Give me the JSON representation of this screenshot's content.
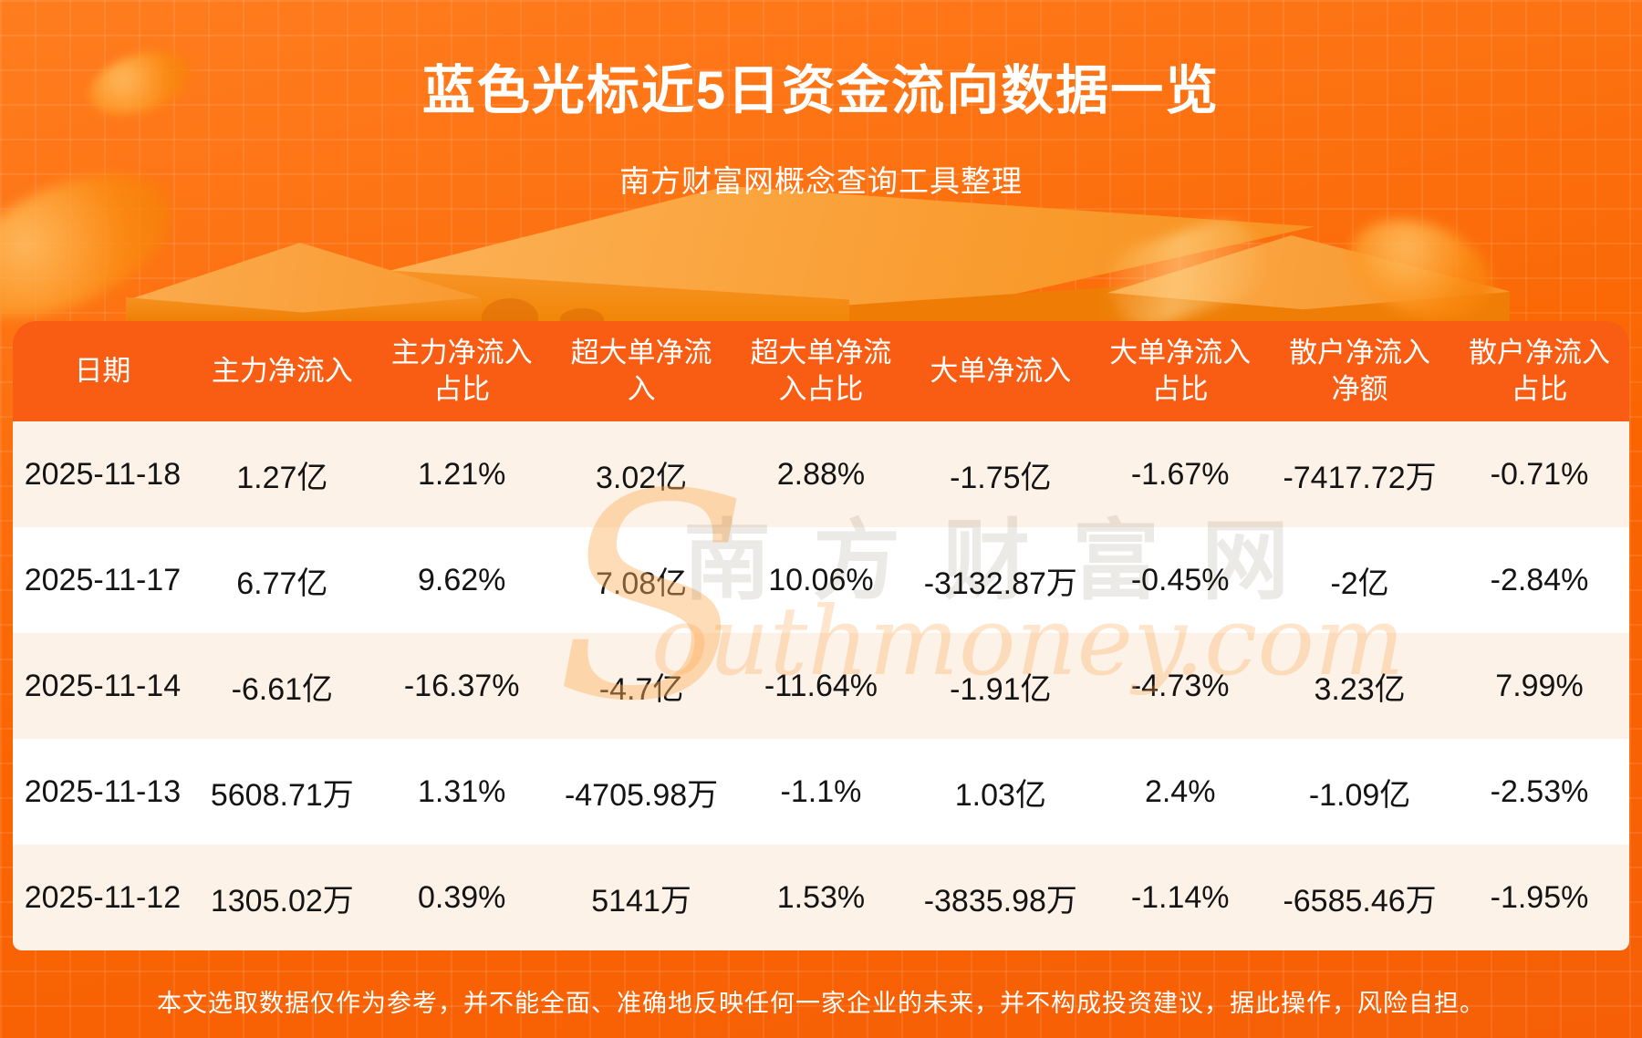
{
  "page": {
    "title": "蓝色光标近5日资金流向数据一览",
    "subtitle": "南方财富网概念查询工具整理",
    "disclaimer": "本文选取数据仅作为参考，并不能全面、准确地反映任何一家企业的未来，并不构成投资建议，据此操作，风险自担。"
  },
  "watermark": {
    "initial": "S",
    "cn": "南方财富网",
    "en": "outhmoney.com"
  },
  "colors": {
    "background_orange": "#FA6502",
    "header_orange": "#F95D13",
    "row_cream": "#FDF2E8",
    "row_white": "#FFFFFF",
    "title_white": "#FFFFFF",
    "cell_text": "#141414",
    "podium_light": "#FBAD4A"
  },
  "chart_data": {
    "type": "table",
    "title": "蓝色光标近5日资金流向数据一览",
    "columns": [
      "日期",
      "主力净流入",
      "主力净流入占比",
      "超大单净流入",
      "超大单净流入占比",
      "大单净流入",
      "大单净流入占比",
      "散户净流入净额",
      "散户净流入占比"
    ],
    "rows": [
      [
        "2025-11-18",
        "1.27亿",
        "1.21%",
        "3.02亿",
        "2.88%",
        "-1.75亿",
        "-1.67%",
        "-7417.72万",
        "-0.71%"
      ],
      [
        "2025-11-17",
        "6.77亿",
        "9.62%",
        "7.08亿",
        "10.06%",
        "-3132.87万",
        "-0.45%",
        "-2亿",
        "-2.84%"
      ],
      [
        "2025-11-14",
        "-6.61亿",
        "-16.37%",
        "-4.7亿",
        "-11.64%",
        "-1.91亿",
        "-4.73%",
        "3.23亿",
        "7.99%"
      ],
      [
        "2025-11-13",
        "5608.71万",
        "1.31%",
        "-4705.98万",
        "-1.1%",
        "1.03亿",
        "2.4%",
        "-1.09亿",
        "-2.53%"
      ],
      [
        "2025-11-12",
        "1305.02万",
        "0.39%",
        "5141万",
        "1.53%",
        "-3835.98万",
        "-1.14%",
        "-6585.46万",
        "-1.95%"
      ]
    ]
  }
}
